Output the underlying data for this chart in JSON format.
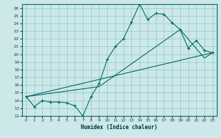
{
  "xlabel": "Humidex (Indice chaleur)",
  "bg_color": "#cce8e8",
  "grid_color": "#99cccc",
  "line_color": "#006666",
  "xlim": [
    -0.5,
    23.5
  ],
  "ylim": [
    12,
    26.5
  ],
  "xticks": [
    0,
    1,
    2,
    3,
    4,
    5,
    6,
    7,
    8,
    9,
    10,
    11,
    12,
    13,
    14,
    15,
    16,
    17,
    18,
    19,
    20,
    21,
    22,
    23
  ],
  "yticks": [
    12,
    13,
    14,
    15,
    16,
    17,
    18,
    19,
    20,
    21,
    22,
    23,
    24,
    25,
    26
  ],
  "line1_x": [
    0,
    1,
    2,
    3,
    4,
    5,
    6,
    7,
    8,
    9,
    10,
    11,
    12,
    13,
    14,
    15,
    16,
    17,
    18,
    19,
    20,
    21,
    22,
    23
  ],
  "line1_y": [
    14.5,
    13.2,
    14.0,
    13.8,
    13.8,
    13.7,
    13.3,
    12.0,
    14.5,
    16.2,
    19.3,
    21.0,
    22.0,
    24.2,
    26.5,
    24.5,
    25.3,
    25.2,
    24.1,
    23.2,
    20.8,
    21.8,
    20.5,
    20.2
  ],
  "line2_x": [
    0,
    23
  ],
  "line2_y": [
    14.5,
    20.2
  ],
  "line3_x": [
    0,
    9,
    19,
    22,
    23
  ],
  "line3_y": [
    14.5,
    15.8,
    23.2,
    19.5,
    20.2
  ]
}
